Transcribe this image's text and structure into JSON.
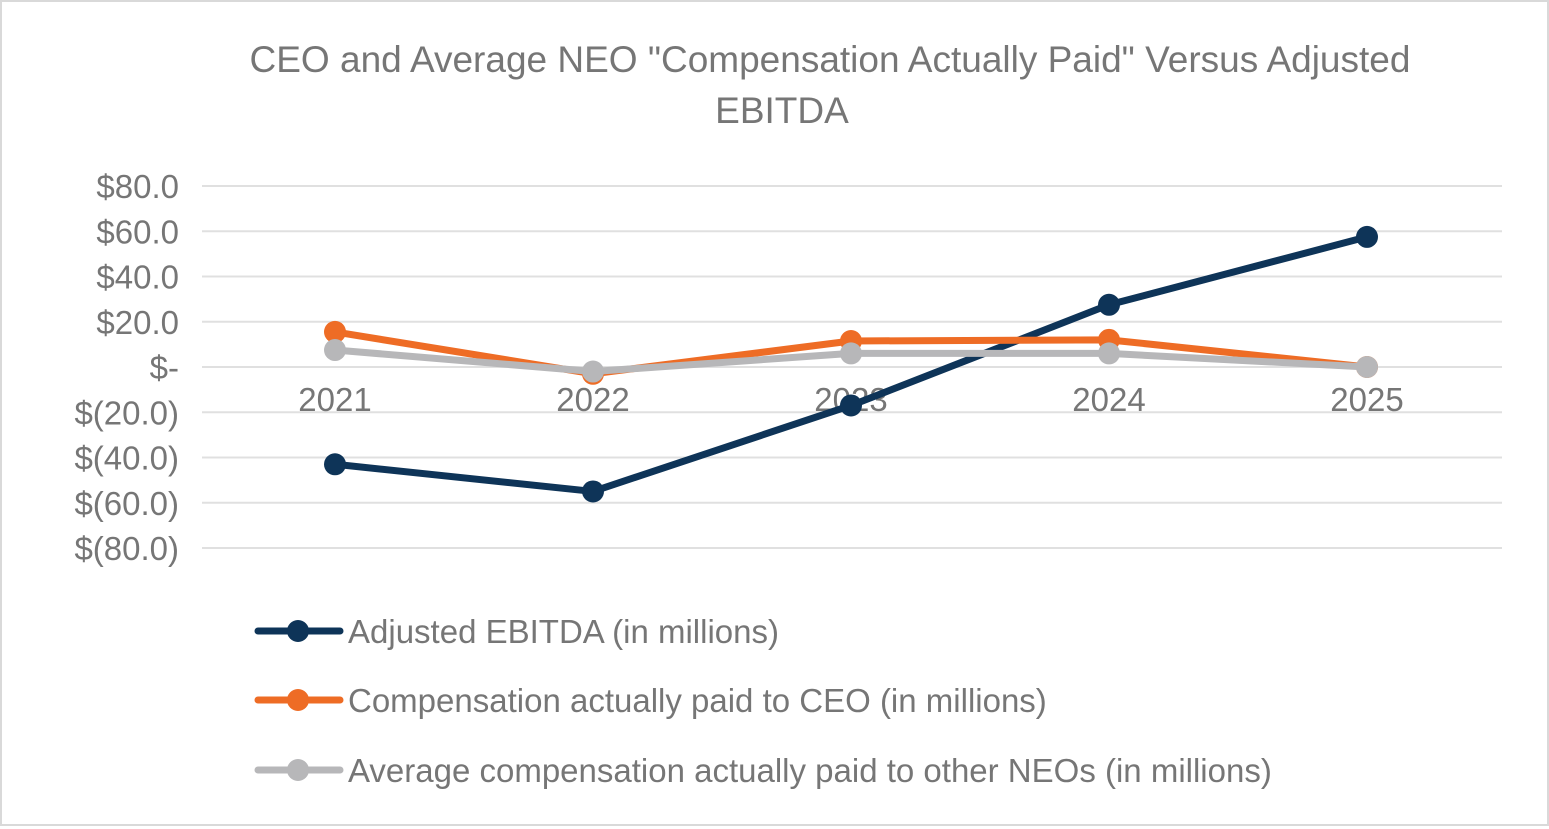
{
  "colors": {
    "ebitda": "#0e3458",
    "ceo": "#ee6c25",
    "neo": "#b7b7b9",
    "grid": "#e0e0e0",
    "text": "#767676",
    "border": "#d9d9d9"
  },
  "chart_data": {
    "type": "line",
    "title_line1": "CEO and Average NEO \"Compensation Actually Paid\" Versus Adjusted",
    "title_line2": "EBITDA",
    "categories": [
      "2021",
      "2022",
      "2023",
      "2024",
      "2025"
    ],
    "y_ticks": [
      {
        "value": 80,
        "label": "$80.0"
      },
      {
        "value": 60,
        "label": "$60.0"
      },
      {
        "value": 40,
        "label": "$40.0"
      },
      {
        "value": 20,
        "label": "$20.0"
      },
      {
        "value": 0,
        "label": "$-"
      },
      {
        "value": -20,
        "label": "$(20.0)"
      },
      {
        "value": -40,
        "label": "$(40.0)"
      },
      {
        "value": -60,
        "label": "$(60.0)"
      },
      {
        "value": -80,
        "label": "$(80.0)"
      }
    ],
    "ylim": [
      -80,
      80
    ],
    "grid": true,
    "legend_position": "bottom",
    "series": [
      {
        "name": "Adjusted EBITDA (in millions)",
        "color_key": "ebitda",
        "values": [
          -43.0,
          -55.0,
          -17.0,
          27.5,
          57.5
        ]
      },
      {
        "name": "Compensation actually paid to CEO (in millions)",
        "color_key": "ceo",
        "values": [
          15.5,
          -3.0,
          11.5,
          12.0,
          0.0
        ]
      },
      {
        "name": "Average compensation actually paid to other NEOs (in millions)",
        "color_key": "neo",
        "values": [
          7.5,
          -2.0,
          6.0,
          6.0,
          0.0
        ]
      }
    ]
  }
}
